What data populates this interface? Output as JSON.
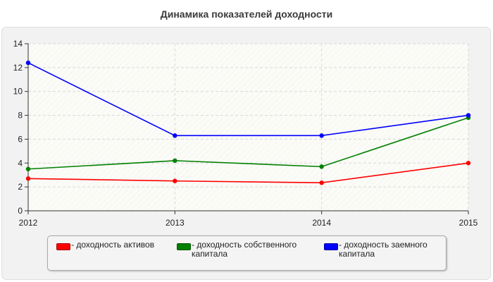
{
  "chart_data": {
    "type": "line",
    "title": "Динамика показателей доходности",
    "xlabel": "",
    "ylabel": "",
    "categories": [
      "2012",
      "2013",
      "2014",
      "2015"
    ],
    "ylim": [
      0,
      14
    ],
    "yticks": [
      0,
      2,
      4,
      6,
      8,
      10,
      12,
      14
    ],
    "grid": true,
    "legend_position": "bottom",
    "series": [
      {
        "name": "- доходность активов",
        "color": "#ff0000",
        "values": [
          2.7,
          2.5,
          2.35,
          4.0
        ]
      },
      {
        "name": "- доходность собственного капитала",
        "color": "#008000",
        "values": [
          3.5,
          4.2,
          3.7,
          7.8
        ]
      },
      {
        "name": "- доходность заемного капитала",
        "color": "#0000ff",
        "values": [
          12.4,
          6.3,
          6.3,
          8.0
        ]
      }
    ]
  }
}
